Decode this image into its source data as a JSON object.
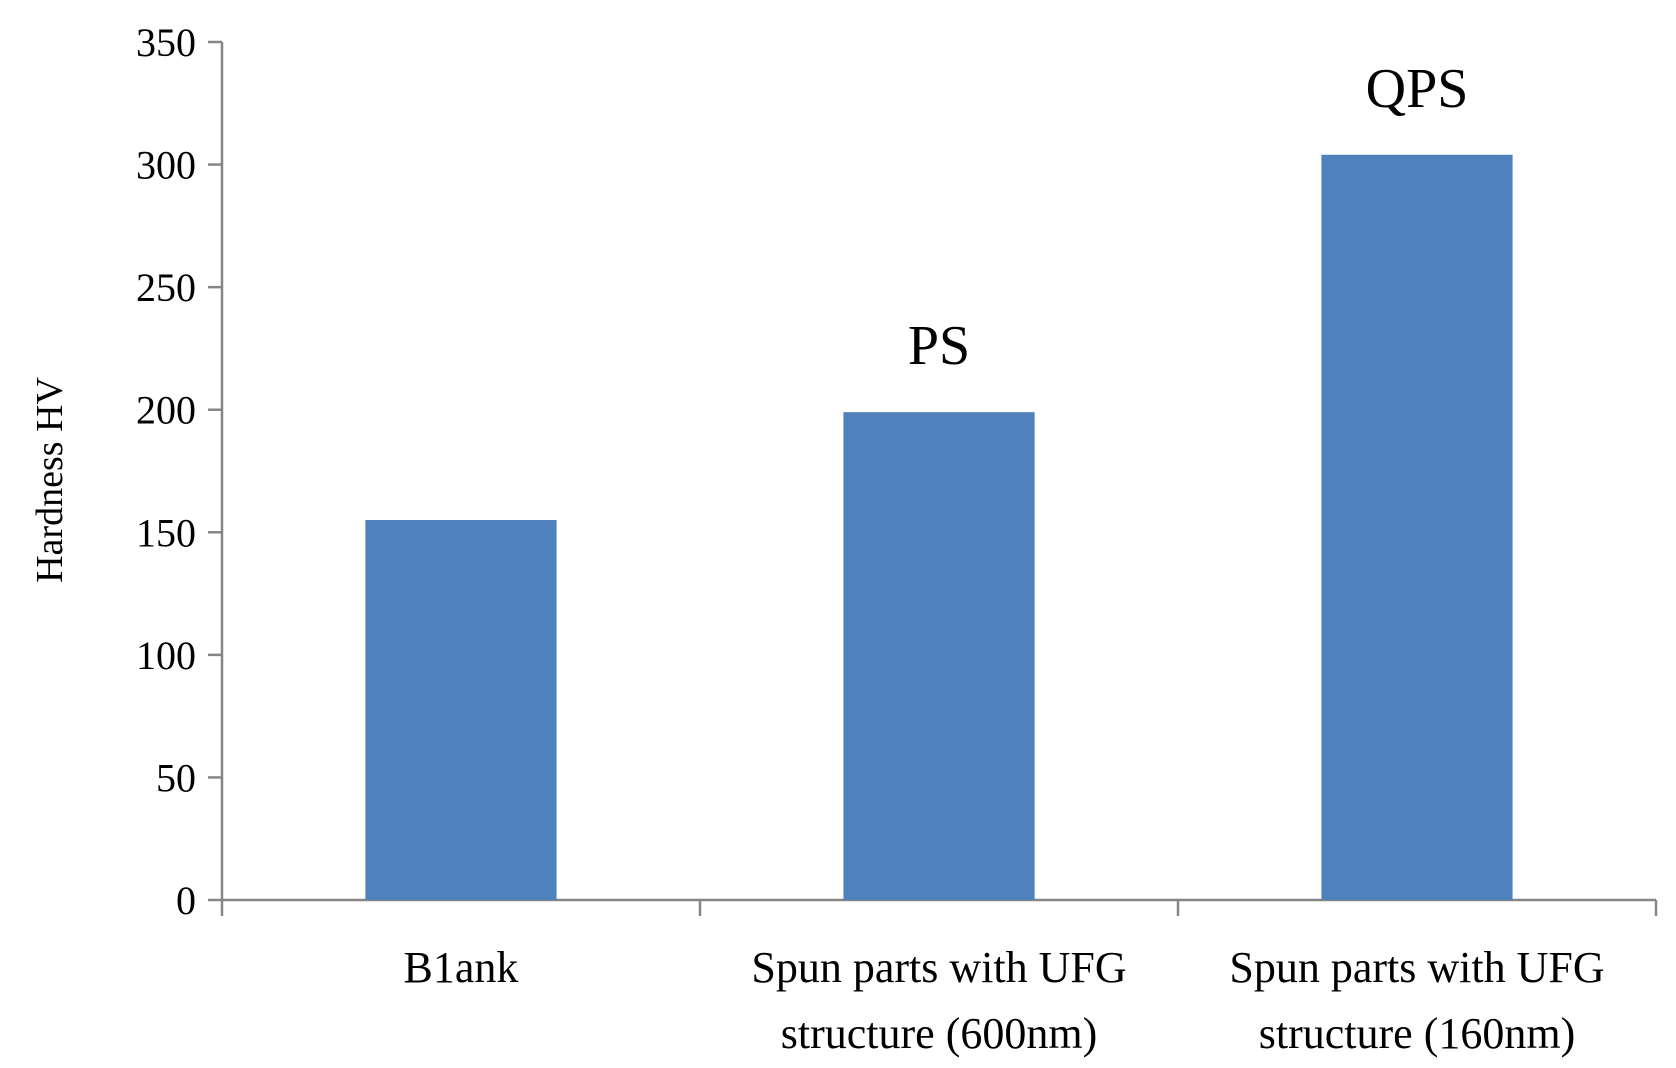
{
  "chart_data": {
    "type": "bar",
    "categories": [
      [
        "B1ank"
      ],
      [
        "Spun parts with UFG",
        "structure (600nm)"
      ],
      [
        "Spun parts with UFG",
        "structure (160nm)"
      ]
    ],
    "values": [
      155,
      199,
      304
    ],
    "annotations": [
      "",
      "PS",
      "QPS"
    ],
    "title": "",
    "xlabel": "",
    "ylabel": "Hardness HV",
    "ylim": [
      0,
      350
    ],
    "yticks": [
      0,
      50,
      100,
      150,
      200,
      250,
      300,
      350
    ],
    "grid": false,
    "legend": "none",
    "colors": {
      "bar": "#4f81bd",
      "axis": "#868686",
      "text": "#000000"
    }
  }
}
